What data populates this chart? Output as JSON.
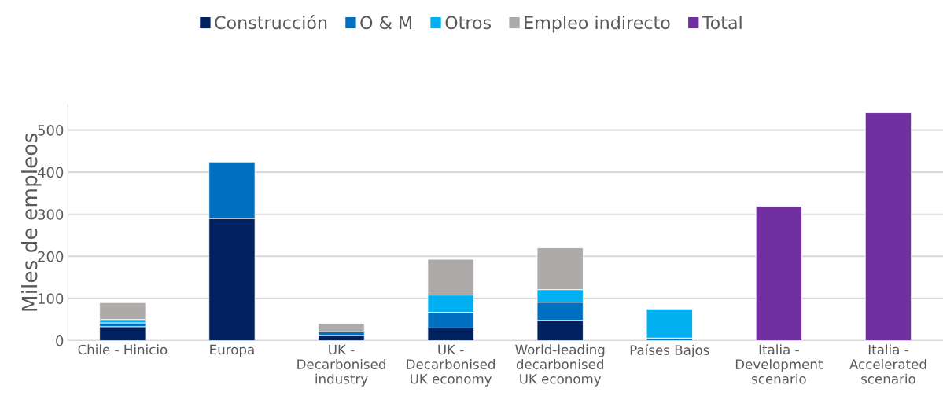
{
  "chart_data": {
    "type": "bar",
    "stacked": true,
    "ylabel": "Miles de empleos",
    "categories": [
      "Chile - Hinicio",
      "Europa",
      "UK -\nDecarbonised\nindustry",
      "UK -\nDecarbonised\nUK economy",
      "World-leading\ndecarbonised\nUK economy",
      "Países Bajos",
      "Italia -\nDevelopment\nscenario",
      "Italia -\nAccelerated\nscenario"
    ],
    "series": [
      {
        "name": "Construcción",
        "color": "#002060",
        "values": [
          33,
          290,
          12,
          30,
          48,
          null,
          null,
          null
        ]
      },
      {
        "name": "O & M",
        "color": "#0070c0",
        "values": [
          9,
          134,
          9,
          37,
          43,
          6,
          null,
          null
        ]
      },
      {
        "name": "Otros",
        "color": "#00b0f0",
        "values": [
          8,
          null,
          null,
          41,
          30,
          69,
          null,
          null
        ]
      },
      {
        "name": "Empleo indirecto",
        "color": "#aeaaaa",
        "values": [
          40,
          null,
          20,
          85,
          99,
          null,
          null,
          null
        ]
      },
      {
        "name": "Total",
        "color": "#7030a0",
        "values": [
          null,
          null,
          null,
          null,
          null,
          null,
          319,
          541
        ]
      }
    ],
    "ylim": [
      0,
      560
    ],
    "yticks": [
      0,
      100,
      200,
      300,
      400,
      500
    ],
    "grid": "y",
    "legend": "top"
  }
}
